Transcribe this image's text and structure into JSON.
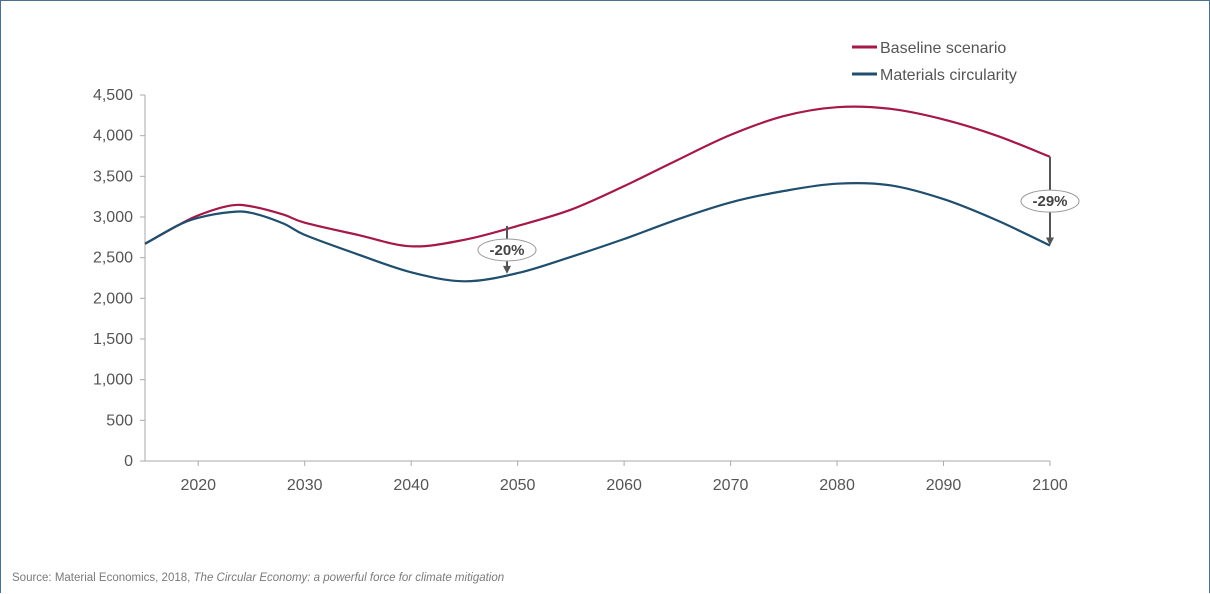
{
  "chart_data": {
    "type": "line",
    "title": "",
    "xlabel": "",
    "ylabel": "",
    "xlim": [
      2015,
      2100
    ],
    "ylim": [
      0,
      4500
    ],
    "x_ticks": [
      2020,
      2030,
      2040,
      2050,
      2060,
      2070,
      2080,
      2090,
      2100
    ],
    "y_ticks": [
      0,
      500,
      1000,
      1500,
      2000,
      2500,
      3000,
      3500,
      4000,
      4500
    ],
    "y_tick_labels": [
      "0",
      "500",
      "1,000",
      "1,500",
      "2,000",
      "2,500",
      "3,000",
      "3,500",
      "4,000",
      "4,500"
    ],
    "grid": false,
    "legend_position": "top-right",
    "series": [
      {
        "name": "Baseline scenario",
        "color": "#a6174a",
        "x": [
          2015,
          2018,
          2020,
          2023,
          2025,
          2028,
          2030,
          2035,
          2040,
          2045,
          2050,
          2055,
          2060,
          2065,
          2070,
          2075,
          2080,
          2085,
          2090,
          2095,
          2100
        ],
        "y": [
          2670,
          2890,
          3020,
          3140,
          3130,
          3030,
          2930,
          2780,
          2640,
          2720,
          2890,
          3090,
          3380,
          3700,
          4010,
          4240,
          4350,
          4330,
          4200,
          4000,
          3740
        ]
      },
      {
        "name": "Materials circularity",
        "color": "#1f4e6e",
        "x": [
          2015,
          2018,
          2020,
          2023,
          2025,
          2028,
          2030,
          2035,
          2040,
          2045,
          2050,
          2055,
          2060,
          2065,
          2070,
          2075,
          2080,
          2085,
          2090,
          2095,
          2100
        ],
        "y": [
          2670,
          2890,
          2990,
          3060,
          3050,
          2920,
          2780,
          2540,
          2320,
          2210,
          2310,
          2510,
          2730,
          2970,
          3180,
          3320,
          3410,
          3390,
          3220,
          2960,
          2650
        ]
      }
    ],
    "annotations": [
      {
        "text": "-20%",
        "x": 2049,
        "from": 2890,
        "to": 2300
      },
      {
        "text": "-29%",
        "x": 2100,
        "from": 3740,
        "to": 2650
      }
    ]
  },
  "legend": {
    "baseline_label": "Baseline scenario",
    "circularity_label": "Materials circularity"
  },
  "source": {
    "prefix": "Source: Material  Economics, 2018, ",
    "title": "The Circular Economy: a powerful  force for climate mitigation"
  }
}
